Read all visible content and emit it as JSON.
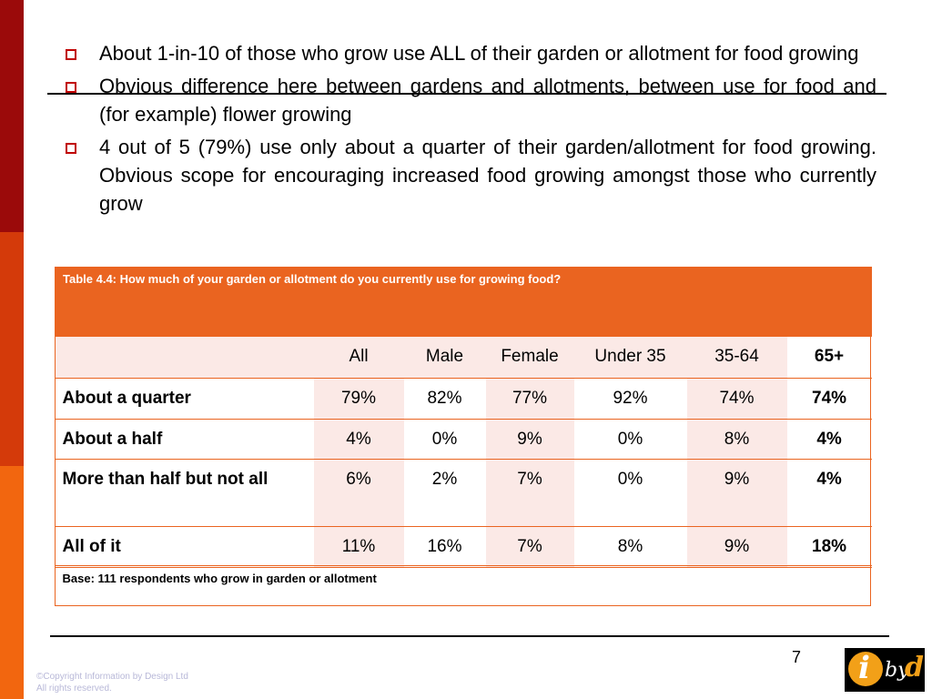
{
  "bullets": [
    "About 1-in-10 of those who grow use ALL of their garden or allotment for food growing",
    "Obvious difference here between gardens and allotments, between use for food and (for example) flower growing",
    "4 out of 5 (79%) use only about a quarter of their garden/allotment for food growing.  Obvious scope for encouraging increased food growing amongst those who currently grow"
  ],
  "table": {
    "title": "Table 4.4:  How much of your garden or allotment do you currently use for growing food?",
    "columns": [
      "",
      "All",
      "Male",
      "Female",
      "Under 35",
      "35-64",
      "65+"
    ],
    "rows": [
      {
        "label": "About a quarter",
        "values": [
          "79%",
          "82%",
          "77%",
          "92%",
          "74%",
          "74%"
        ]
      },
      {
        "label": "About a half",
        "values": [
          "4%",
          "0%",
          "9%",
          "0%",
          "8%",
          "4%"
        ]
      },
      {
        "label": "More than half but not all",
        "values": [
          "6%",
          "2%",
          "7%",
          "0%",
          "9%",
          "4%"
        ]
      },
      {
        "label": "All of it",
        "values": [
          "11%",
          "16%",
          "7%",
          "8%",
          "9%",
          "18%"
        ]
      }
    ],
    "base": "Base:  111  respondents who grow in garden or allotment"
  },
  "footer": {
    "page_number": "7",
    "copyright_line1": "©Copyright Information by Design Ltd",
    "copyright_line2": "All rights reserved."
  },
  "logo": {
    "i": "i",
    "by": "by",
    "d": "d"
  },
  "colors": {
    "accent": "#ea6420",
    "strip_top": "#9b0a0a",
    "strip_mid": "#d43a0a",
    "strip_bottom": "#f2660f",
    "pink": "#fbe9e6",
    "bullet": "#c00000"
  }
}
